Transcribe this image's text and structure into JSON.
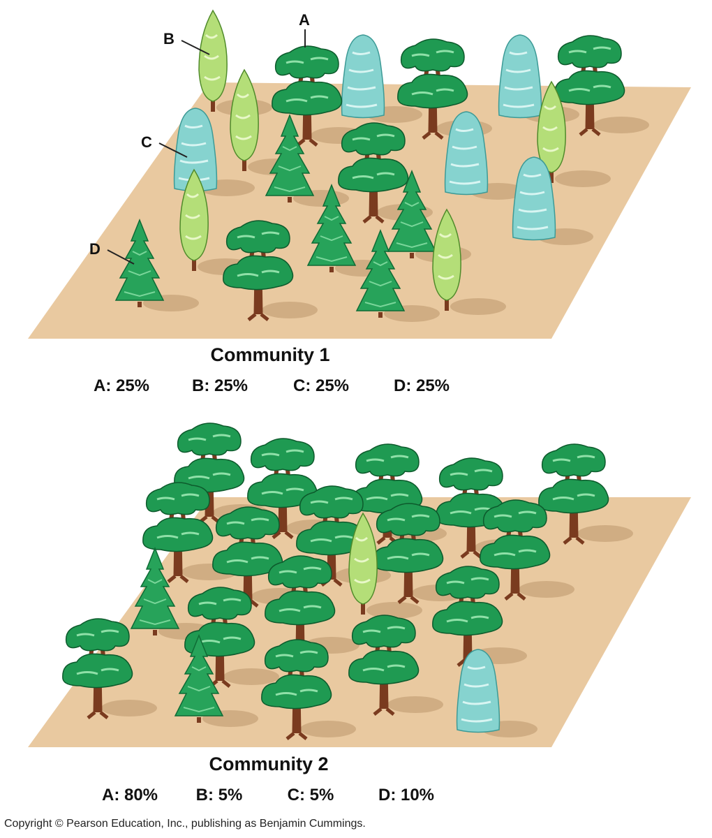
{
  "colors": {
    "ground": "#e9c9a0",
    "shadow": "#c9a67c",
    "speciesA": "#1f9a52",
    "speciesB": "#b4de78",
    "speciesC": "#86d3cf",
    "speciesD": "#27a35a",
    "trunk": "#7a3b1f"
  },
  "labels": {
    "A": "A",
    "B": "B",
    "C": "C",
    "D": "D"
  },
  "community1": {
    "title": "Community 1",
    "stats": [
      "A: 25%",
      "B: 25%",
      "C: 25%",
      "D: 25%"
    ]
  },
  "community2": {
    "title": "Community 2",
    "stats": [
      "A: 80%",
      "B: 5%",
      "C: 5%",
      "D: 10%"
    ]
  },
  "copyright": "Copyright © Pearson Education, Inc., publishing as Benjamin Cummings."
}
